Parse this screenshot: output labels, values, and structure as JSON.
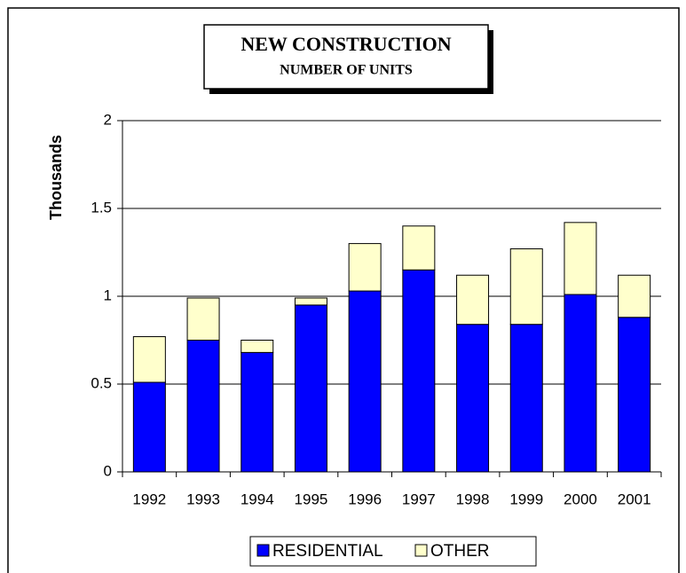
{
  "chart_data": {
    "type": "bar",
    "stacked": true,
    "title": "NEW CONSTRUCTION",
    "subtitle": "NUMBER OF UNITS",
    "y_label": "Thousands",
    "categories": [
      "1992",
      "1993",
      "1994",
      "1995",
      "1996",
      "1997",
      "1998",
      "1999",
      "2000",
      "2001"
    ],
    "series": [
      {
        "name": "RESIDENTIAL",
        "color": "#0000ff",
        "values": [
          0.51,
          0.75,
          0.68,
          0.95,
          1.03,
          1.15,
          0.84,
          0.84,
          1.01,
          0.88
        ]
      },
      {
        "name": "OTHER",
        "color": "#ffffcc",
        "values": [
          0.26,
          0.24,
          0.07,
          0.04,
          0.27,
          0.25,
          0.28,
          0.43,
          0.41,
          0.24
        ]
      }
    ],
    "ylim": [
      0,
      2
    ],
    "yticks": [
      0,
      0.5,
      1,
      1.5,
      2
    ],
    "grid": true,
    "legend": "bottom"
  }
}
